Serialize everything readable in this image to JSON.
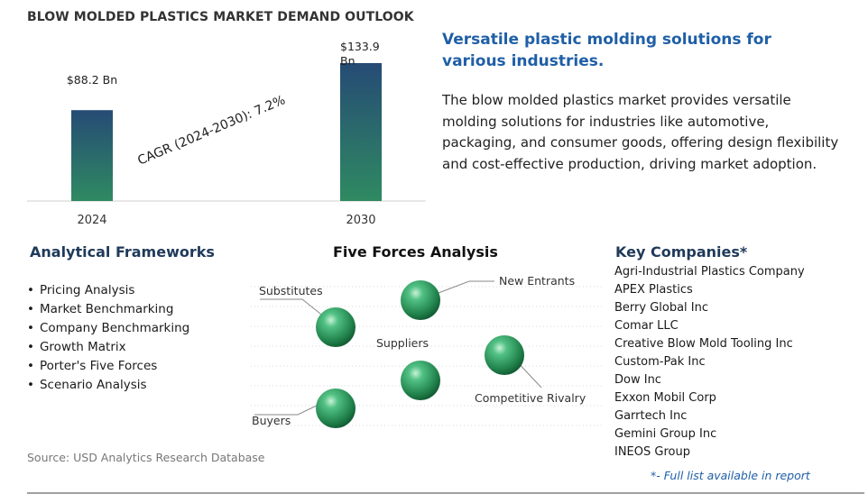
{
  "chart_data": {
    "type": "bar",
    "title": "BLOW MOLDED PLASTICS MARKET DEMAND OUTLOOK",
    "categories": [
      "2024",
      "2030"
    ],
    "values": [
      88.2,
      133.9
    ],
    "value_labels": [
      "$88.2 Bn",
      "$133.9 Bn"
    ],
    "annotation": "CAGR (2024-2030):  7.2%",
    "ylim": [
      0,
      140
    ],
    "grid": false,
    "legend": "none"
  },
  "colors": {
    "bar_top": "#264b75",
    "bar_bottom": "#2f8a62",
    "headline": "#1f5fa6",
    "sphere": "#2e9e5e"
  },
  "headline": "Versatile plastic molding solutions for various industries.",
  "summary": "The blow molded plastics market provides versatile molding solutions for industries like automotive, packaging, and consumer goods, offering design flexibility and cost-effective production, driving market adoption.",
  "frameworks": {
    "title": "Analytical Frameworks",
    "items": [
      "Pricing Analysis",
      "Market Benchmarking",
      "Company Benchmarking",
      "Growth Matrix",
      "Porter's Five Forces",
      "Scenario Analysis"
    ]
  },
  "five_forces": {
    "title": "Five Forces Analysis",
    "labels": {
      "substitutes": "Substitutes",
      "new_entrants": "New Entrants",
      "suppliers": "Suppliers",
      "competitive_rivalry": "Competitive Rivalry",
      "buyers": "Buyers"
    }
  },
  "companies": {
    "title": "Key Companies*",
    "items": [
      "Agri-Industrial Plastics Company",
      "APEX Plastics",
      "Berry Global Inc",
      "Comar LLC",
      "Creative Blow Mold Tooling Inc",
      "Custom-Pak Inc",
      "Dow Inc",
      "Exxon Mobil Corp",
      "Garrtech Inc",
      "Gemini Group Inc",
      "INEOS Group"
    ],
    "note": "*- Full list available in report"
  },
  "source": "Source: USD Analytics Research Database"
}
